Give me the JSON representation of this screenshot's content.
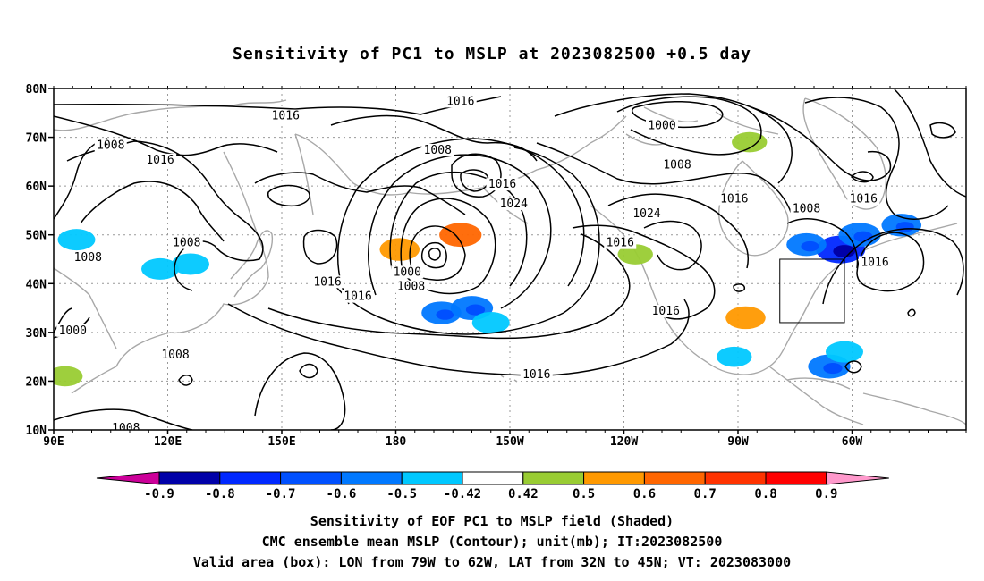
{
  "title": "Sensitivity of PC1 to MSLP at 2023082500 +0.5 day",
  "lat_labels": [
    "80N",
    "70N",
    "60N",
    "50N",
    "40N",
    "30N",
    "20N",
    "10N"
  ],
  "lon_labels": [
    "90E",
    "120E",
    "150E",
    "180",
    "150W",
    "120W",
    "90W",
    "60W"
  ],
  "contour_labels": [
    {
      "text": "1016",
      "lon": 151,
      "lat": 74
    },
    {
      "text": "1016",
      "lon": -163,
      "lat": 77
    },
    {
      "text": "1000",
      "lon": -110,
      "lat": 72
    },
    {
      "text": "1008",
      "lon": 105,
      "lat": 68
    },
    {
      "text": "1016",
      "lon": 118,
      "lat": 65
    },
    {
      "text": "1008",
      "lon": -169,
      "lat": 67
    },
    {
      "text": "1008",
      "lon": -106,
      "lat": 64
    },
    {
      "text": "1016",
      "lon": -152,
      "lat": 60
    },
    {
      "text": "1024",
      "lon": -149,
      "lat": 56
    },
    {
      "text": "1016",
      "lon": -91,
      "lat": 57
    },
    {
      "text": "1008",
      "lon": -72,
      "lat": 55
    },
    {
      "text": "1016",
      "lon": -57,
      "lat": 57
    },
    {
      "text": "1024",
      "lon": -114,
      "lat": 54
    },
    {
      "text": "1016",
      "lon": -121,
      "lat": 48
    },
    {
      "text": "1008",
      "lon": 125,
      "lat": 48
    },
    {
      "text": "1008",
      "lon": 99,
      "lat": 45
    },
    {
      "text": "1016",
      "lon": -54,
      "lat": 44
    },
    {
      "text": "1016",
      "lon": 162,
      "lat": 40
    },
    {
      "text": "1016",
      "lon": 170,
      "lat": 37
    },
    {
      "text": "1000",
      "lon": -177,
      "lat": 42
    },
    {
      "text": "1008",
      "lon": -176,
      "lat": 39
    },
    {
      "text": "1016",
      "lon": -109,
      "lat": 34
    },
    {
      "text": "1000",
      "lon": 95,
      "lat": 30
    },
    {
      "text": "1008",
      "lon": 122,
      "lat": 25
    },
    {
      "text": "1016",
      "lon": -143,
      "lat": 21
    },
    {
      "text": "1008",
      "lon": 109,
      "lat": 10
    }
  ],
  "valid_box": {
    "lon_min": -79,
    "lon_max": -62,
    "lat_min": 32,
    "lat_max": 45
  },
  "colorbar": {
    "ticks": [
      "-0.9",
      "-0.8",
      "-0.7",
      "-0.6",
      "-0.5",
      "-0.42",
      "0.42",
      "0.5",
      "0.6",
      "0.7",
      "0.8",
      "0.9"
    ],
    "colors": [
      "#0000a8",
      "#0028ff",
      "#0050ff",
      "#0078ff",
      "#00c8ff",
      "#ffffff",
      "#99cc33",
      "#ff9900",
      "#ff6600",
      "#ff3300",
      "#ff0000"
    ],
    "low_end_color": "#cc0099",
    "high_end_color": "#ff99cc"
  },
  "captions": [
    "Sensitivity of EOF PC1 to MSLP field (Shaded)",
    "CMC ensemble mean MSLP (Contour); unit(mb); IT:2023082500",
    "Valid area (box): LON from 79W to 62W, LAT from 32N to 45N; VT: 2023083000"
  ],
  "shading": [
    {
      "lon": -168,
      "lat": 34,
      "value": -0.55
    },
    {
      "lon": -160,
      "lat": 35,
      "value": -0.6
    },
    {
      "lon": -155,
      "lat": 32,
      "value": -0.5
    },
    {
      "lon": -63,
      "lat": 47,
      "value": -0.75
    },
    {
      "lon": -72,
      "lat": 48,
      "value": -0.55
    },
    {
      "lon": -58,
      "lat": 50,
      "value": -0.6
    },
    {
      "lon": -47,
      "lat": 52,
      "value": -0.55
    },
    {
      "lon": -66,
      "lat": 23,
      "value": -0.6
    },
    {
      "lon": -62,
      "lat": 26,
      "value": -0.5
    },
    {
      "lon": -163,
      "lat": 50,
      "value": 0.6
    },
    {
      "lon": -179,
      "lat": 47,
      "value": 0.55
    },
    {
      "lon": -88,
      "lat": 33,
      "value": 0.55
    },
    {
      "lon": 93,
      "lat": 21,
      "value": 0.45
    },
    {
      "lon": -87,
      "lat": 69,
      "value": 0.45
    },
    {
      "lon": -117,
      "lat": 46,
      "value": 0.45
    },
    {
      "lon": 126,
      "lat": 44,
      "value": -0.5
    },
    {
      "lon": 118,
      "lat": 43,
      "value": -0.5
    },
    {
      "lon": 96,
      "lat": 49,
      "value": -0.5
    },
    {
      "lon": -91,
      "lat": 25,
      "value": -0.45
    }
  ]
}
